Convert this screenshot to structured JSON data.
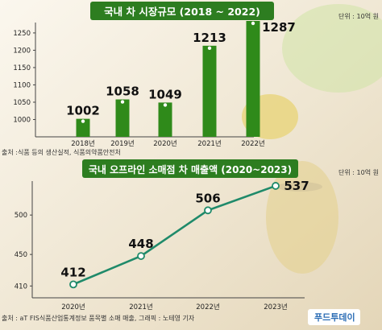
{
  "colors": {
    "bar": "#2f8a1a",
    "line": "#1f8a6a",
    "title_bg": "#2d7d20",
    "brand": "#2c6db5"
  },
  "chart_data": [
    {
      "type": "bar",
      "title": "국내 차 시장규모 (2018 ~ 2022)",
      "unit": "단위 : 10억 원",
      "categories": [
        "2018년",
        "2019년",
        "2020년",
        "2021년",
        "2022년"
      ],
      "values": [
        1002,
        1058,
        1049,
        1213,
        1287
      ],
      "value_labels": [
        "1002",
        "1058",
        "1049",
        "1213",
        "1287"
      ],
      "yticks": [
        1000,
        1050,
        1100,
        1150,
        1200,
        1250
      ],
      "ylim": [
        950,
        1280
      ],
      "grid": false,
      "source": "출처 :식품 등의 생산실적, 식품의약품안전처"
    },
    {
      "type": "line",
      "title": "국내 오프라인 소매점 차 매출액 (2020~2023)",
      "unit": "단위 : 10억 원",
      "categories": [
        "2020년",
        "2021년",
        "2022년",
        "2023년"
      ],
      "values": [
        412,
        448,
        506,
        537
      ],
      "value_labels": [
        "412",
        "448",
        "506",
        "537"
      ],
      "yticks": [
        410,
        450,
        500
      ],
      "ylim": [
        395,
        540
      ],
      "grid": false,
      "source": "출처 : aT FIS식품산업통계정보 품목별 소매 매출, 그래픽 : 노테영 기자"
    }
  ],
  "brand_text": "푸드투데이"
}
